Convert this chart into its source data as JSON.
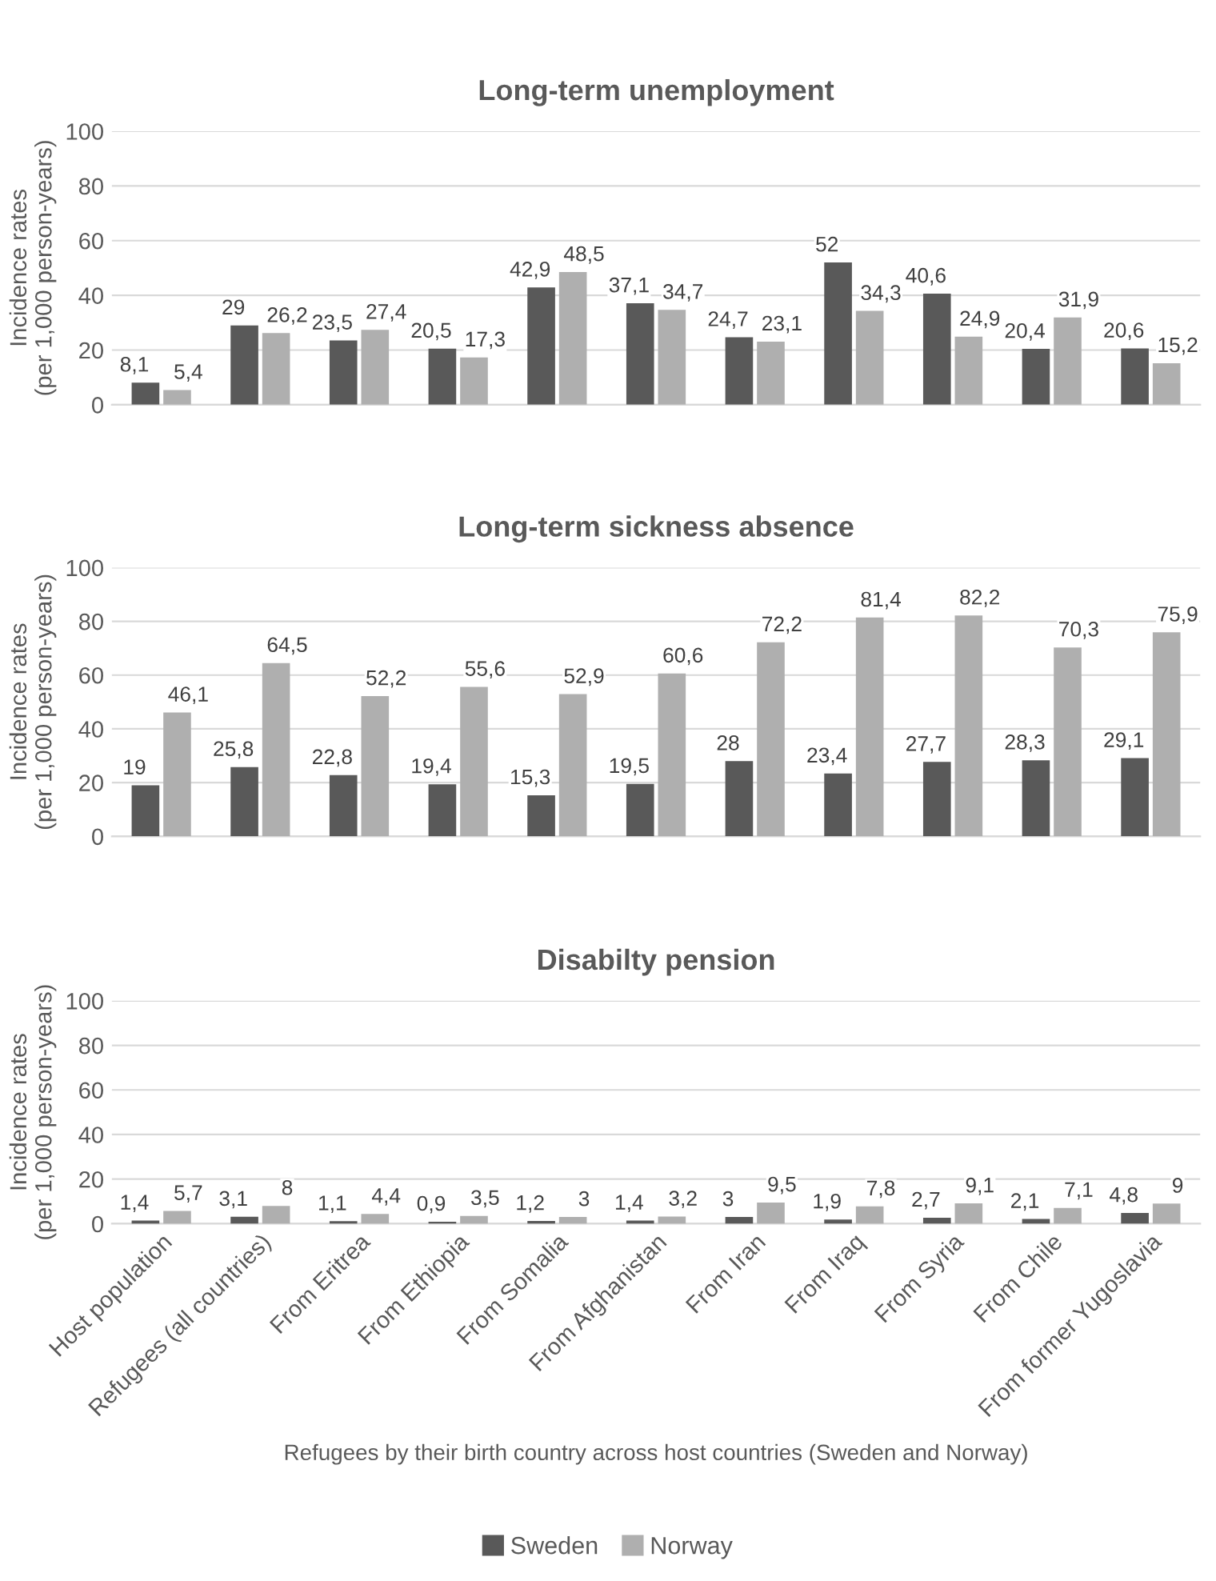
{
  "chart_data": [
    {
      "type": "bar",
      "title": "Long-term unemployment",
      "ylabel": "Incidence rates\n(per 1,000 person-years)",
      "categories": [
        null,
        null,
        null,
        null,
        null,
        null,
        null,
        null,
        null,
        null,
        null
      ],
      "tick_labels": "y",
      "ylim": [
        0,
        100
      ],
      "yticks": [
        0,
        20,
        40,
        60,
        80,
        100
      ],
      "grid": "y",
      "series": [
        {
          "color": "#595959",
          "values": [
            8.1,
            29,
            23.5,
            20.5,
            42.9,
            37.1,
            24.7,
            52,
            40.6,
            20.4,
            20.6
          ],
          "value_labels": [
            "8,1",
            "29",
            "23,5",
            "20,5",
            "42,9",
            "37,1",
            "24,7",
            "52",
            "40,6",
            "20,4",
            "20,6"
          ]
        },
        {
          "color": "#afafaf",
          "values": [
            5.4,
            26.2,
            27.4,
            17.3,
            48.5,
            34.7,
            23.1,
            34.3,
            24.9,
            31.9,
            15.2
          ],
          "value_labels": [
            "5,4",
            "26,2",
            "27,4",
            "17,3",
            "48,5",
            "34,7",
            "23,1",
            "34,3",
            "24,9",
            "31,9",
            "15,2"
          ]
        }
      ]
    },
    {
      "type": "bar",
      "title": "Long-term sickness absence",
      "ylabel": "Incidence rates\n(per 1,000 person-years)",
      "categories": [
        null,
        null,
        null,
        null,
        null,
        null,
        null,
        null,
        null,
        null,
        null
      ],
      "tick_labels": "y",
      "ylim": [
        0,
        100
      ],
      "yticks": [
        0,
        20,
        40,
        60,
        80,
        100
      ],
      "grid": "y",
      "series": [
        {
          "color": "#595959",
          "values": [
            19,
            25.8,
            22.8,
            19.4,
            15.3,
            19.5,
            28,
            23.4,
            27.7,
            28.3,
            29.1
          ],
          "value_labels": [
            "19",
            "25,8",
            "22,8",
            "19,4",
            "15,3",
            "19,5",
            "28",
            "23,4",
            "27,7",
            "28,3",
            "29,1"
          ]
        },
        {
          "color": "#afafaf",
          "values": [
            46.1,
            64.5,
            52.2,
            55.6,
            52.9,
            60.6,
            72.2,
            81.4,
            82.2,
            70.3,
            75.9
          ],
          "value_labels": [
            "46,1",
            "64,5",
            "52,2",
            "55,6",
            "52,9",
            "60,6",
            "72,2",
            "81,4",
            "82,2",
            "70,3",
            "75,9"
          ]
        }
      ]
    },
    {
      "type": "bar",
      "title": "Disabilty pension",
      "ylabel": "Incidence rates\n(per 1,000 person-years)",
      "xlabel": "Refugees by their birth country across host countries (Sweden and Norway)",
      "categories": [
        "Host population",
        "Refugees (all countries)",
        "From Eritrea",
        "From Ethiopia",
        "From Somalia",
        "From Afghanistan",
        "From Iran",
        "From Iraq",
        "From Syria",
        "From Chile",
        "From former Yugoslavia"
      ],
      "ylim": [
        0,
        100
      ],
      "yticks": [
        0,
        20,
        40,
        60,
        80,
        100
      ],
      "grid": "y",
      "legend": "bottom",
      "series": [
        {
          "name": "Sweden",
          "color": "#595959",
          "values": [
            1.4,
            3.1,
            1.1,
            0.9,
            1.2,
            1.4,
            3,
            1.9,
            2.7,
            2.1,
            4.8
          ],
          "value_labels": [
            "1,4",
            "3,1",
            "1,1",
            "0,9",
            "1,2",
            "1,4",
            "3",
            "1,9",
            "2,7",
            "2,1",
            "4,8"
          ]
        },
        {
          "name": "Norway",
          "color": "#afafaf",
          "values": [
            5.7,
            8,
            4.4,
            3.5,
            3,
            3.2,
            9.5,
            7.8,
            9.1,
            7.1,
            9
          ],
          "value_labels": [
            "5,7",
            "8",
            "4,4",
            "3,5",
            "3",
            "3,2",
            "9,5",
            "7,8",
            "9,1",
            "7,1",
            "9"
          ]
        }
      ]
    }
  ]
}
